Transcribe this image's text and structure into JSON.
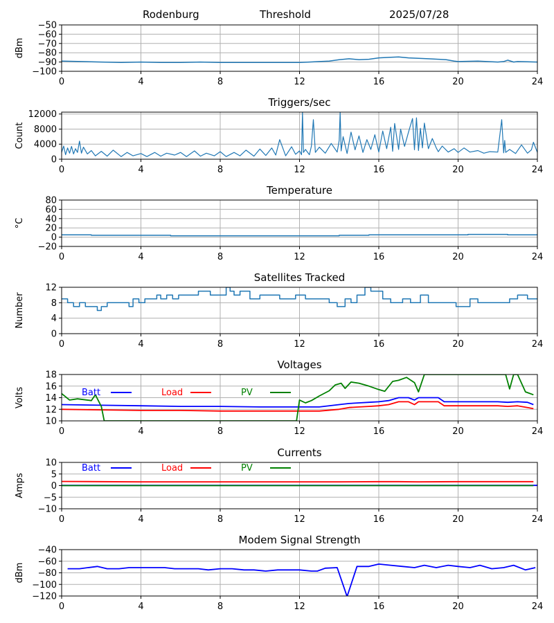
{
  "header": {
    "station": "Rodenburg",
    "mode": "Threshold",
    "date": "2025/07/28"
  },
  "colors": {
    "mpl_blue": "#1f77b4",
    "batt": "#0000ff",
    "load": "#ff0000",
    "pv": "#008000",
    "grid": "#b0b0b0"
  },
  "chart_data": [
    {
      "type": "line",
      "title": "",
      "ylabel": "dBm",
      "xlim": [
        0,
        24
      ],
      "xticks": [
        0,
        4,
        8,
        12,
        16,
        20,
        24
      ],
      "ylim": [
        -100,
        -50
      ],
      "yticks": [
        -100,
        -90,
        -80,
        -70,
        -60,
        -50
      ],
      "grid": true,
      "series": [
        {
          "color": "#1f77b4",
          "width": 1.5,
          "x": [
            0,
            1,
            2,
            3,
            4,
            5,
            6,
            7,
            8,
            9,
            10,
            11,
            12,
            12.5,
            13,
            13.5,
            14,
            14.5,
            15,
            15.5,
            16,
            16.5,
            17,
            17.5,
            18,
            18.5,
            19,
            19.4,
            19.8,
            20,
            21,
            22,
            22.3,
            22.5,
            22.8,
            23,
            24
          ],
          "y": [
            -89,
            -89.5,
            -90,
            -90.5,
            -90,
            -90.5,
            -90.5,
            -90,
            -90.5,
            -90.5,
            -90.5,
            -90.5,
            -90.5,
            -90,
            -89.5,
            -89,
            -87.5,
            -86.5,
            -87.5,
            -87,
            -85.5,
            -85,
            -84.5,
            -85.5,
            -86,
            -86.5,
            -87,
            -87.5,
            -89,
            -89.5,
            -89,
            -90,
            -89.5,
            -88,
            -90,
            -89.5,
            -90
          ]
        }
      ]
    },
    {
      "type": "line",
      "title": "Triggers/sec",
      "ylabel": "Count",
      "xlim": [
        0,
        24
      ],
      "xticks": [
        0,
        4,
        8,
        12,
        16,
        20,
        24
      ],
      "ylim": [
        0,
        12500
      ],
      "yticks": [
        0,
        4000,
        8000,
        12000
      ],
      "grid": true,
      "series": [
        {
          "color": "#1f77b4",
          "width": 1.2,
          "x": [
            0,
            0.1,
            0.2,
            0.3,
            0.4,
            0.5,
            0.6,
            0.7,
            0.8,
            0.9,
            1.0,
            1.1,
            1.3,
            1.5,
            1.7,
            2.0,
            2.3,
            2.6,
            3.0,
            3.3,
            3.6,
            4.0,
            4.3,
            4.7,
            5.0,
            5.3,
            5.7,
            6.0,
            6.3,
            6.7,
            7.0,
            7.3,
            7.7,
            8.0,
            8.3,
            8.7,
            9.0,
            9.3,
            9.7,
            10.0,
            10.3,
            10.6,
            10.8,
            11.0,
            11.3,
            11.6,
            11.8,
            12.0,
            12.1,
            12.15,
            12.2,
            12.3,
            12.5,
            12.6,
            12.7,
            12.8,
            13.0,
            13.3,
            13.6,
            13.9,
            14.0,
            14.05,
            14.1,
            14.2,
            14.4,
            14.6,
            14.8,
            15.0,
            15.2,
            15.4,
            15.6,
            15.8,
            16.0,
            16.2,
            16.4,
            16.6,
            16.7,
            16.8,
            17.0,
            17.1,
            17.3,
            17.5,
            17.7,
            17.8,
            17.9,
            18.0,
            18.1,
            18.2,
            18.3,
            18.5,
            18.7,
            18.9,
            19.0,
            19.2,
            19.5,
            19.8,
            20.0,
            20.3,
            20.6,
            21.0,
            21.3,
            21.6,
            22.0,
            22.2,
            22.3,
            22.35,
            22.4,
            22.6,
            22.9,
            23.2,
            23.5,
            23.7,
            23.8,
            24.0
          ],
          "y": [
            1800,
            3500,
            1200,
            3000,
            1600,
            3400,
            1400,
            2800,
            1800,
            4800,
            1600,
            3200,
            1400,
            2300,
            900,
            2100,
            800,
            2400,
            700,
            1800,
            900,
            1500,
            700,
            1800,
            800,
            1600,
            1100,
            1800,
            700,
            2200,
            800,
            1600,
            900,
            2000,
            700,
            1800,
            900,
            2400,
            800,
            2700,
            1000,
            3000,
            1100,
            5200,
            900,
            3300,
            1300,
            2200,
            1200,
            12500,
            1800,
            2600,
            1200,
            3500,
            10500,
            1800,
            3200,
            1600,
            4200,
            1900,
            5000,
            12500,
            2200,
            6000,
            1500,
            7200,
            2500,
            6200,
            1800,
            5200,
            2600,
            6500,
            1900,
            7500,
            2800,
            8500,
            2100,
            9500,
            2600,
            8000,
            3400,
            7200,
            10800,
            2500,
            11000,
            2300,
            8200,
            3000,
            9600,
            2800,
            5500,
            3000,
            2000,
            3500,
            1900,
            2800,
            1800,
            3000,
            1900,
            2300,
            1600,
            2000,
            1900,
            10500,
            1700,
            5000,
            1800,
            2600,
            1500,
            3800,
            1600,
            2500,
            4500,
            1800
          ]
        }
      ]
    },
    {
      "type": "line",
      "title": "Temperature",
      "ylabel": "°C",
      "xlim": [
        0,
        24
      ],
      "xticks": [
        0,
        4,
        8,
        12,
        16,
        20,
        24
      ],
      "ylim": [
        -20,
        80
      ],
      "yticks": [
        -20,
        0,
        20,
        40,
        60,
        80
      ],
      "grid": true,
      "series": [
        {
          "color": "#1f77b4",
          "width": 1.5,
          "x": [
            0,
            1.5,
            1.5,
            5.5,
            5.5,
            14,
            14,
            15.5,
            15.5,
            20.5,
            20.5,
            22.5,
            22.5,
            24
          ],
          "y": [
            5,
            5,
            4,
            4,
            3,
            3,
            4,
            4,
            5,
            5,
            6,
            6,
            5,
            5
          ]
        }
      ]
    },
    {
      "type": "line",
      "title": "Satellites Tracked",
      "ylabel": "Number",
      "xlim": [
        0,
        24
      ],
      "xticks": [
        0,
        4,
        8,
        12,
        16,
        20,
        24
      ],
      "ylim": [
        0,
        12
      ],
      "yticks": [
        0,
        4,
        8,
        12
      ],
      "grid": true,
      "series": [
        {
          "color": "#1f77b4",
          "width": 1.5,
          "step": true,
          "x": [
            0,
            0.3,
            0.6,
            0.9,
            1.2,
            1.5,
            1.8,
            2.0,
            2.3,
            3.0,
            3.4,
            3.6,
            3.9,
            4.2,
            4.5,
            4.8,
            5.0,
            5.3,
            5.6,
            5.9,
            6.3,
            6.9,
            7.5,
            8.3,
            8.5,
            8.7,
            9.0,
            9.5,
            10.0,
            11.0,
            11.8,
            12.3,
            12.8,
            13.5,
            13.9,
            14.3,
            14.6,
            14.9,
            15.3,
            15.6,
            16.2,
            16.6,
            17.2,
            17.6,
            18.1,
            18.5,
            19.0,
            19.6,
            19.9,
            20.6,
            21.0,
            21.5,
            22.0,
            22.6,
            23.0,
            23.5,
            24.0
          ],
          "y": [
            9,
            8,
            7,
            8,
            7,
            7,
            6,
            7,
            8,
            8,
            7,
            9,
            8,
            9,
            9,
            10,
            9,
            10,
            9,
            10,
            10,
            11,
            10,
            12,
            11,
            10,
            11,
            9,
            10,
            9,
            10,
            9,
            9,
            8,
            7,
            9,
            8,
            10,
            12,
            11,
            9,
            8,
            9,
            8,
            10,
            8,
            8,
            8,
            7,
            9,
            8,
            8,
            8,
            9,
            10,
            9,
            9
          ]
        }
      ]
    },
    {
      "type": "line",
      "title": "Voltages",
      "ylabel": "Volts",
      "xlim": [
        0,
        24
      ],
      "xticks": [
        0,
        4,
        8,
        12,
        16,
        20,
        24
      ],
      "ylim": [
        10,
        18
      ],
      "yticks": [
        10,
        12,
        14,
        16,
        18
      ],
      "grid": true,
      "legend": "top-left",
      "series": [
        {
          "name": "Batt",
          "color": "#0000ff",
          "width": 1.8,
          "x": [
            0,
            2,
            4,
            6,
            8,
            10,
            12,
            13,
            14,
            14.5,
            15,
            15.5,
            16,
            16.5,
            17,
            17.5,
            17.8,
            18,
            18.5,
            19,
            19.3,
            20,
            21,
            22,
            22.5,
            23,
            23.5,
            23.8
          ],
          "y": [
            12.8,
            12.7,
            12.6,
            12.5,
            12.5,
            12.4,
            12.4,
            12.4,
            12.8,
            13.0,
            13.1,
            13.2,
            13.3,
            13.5,
            14.0,
            14.0,
            13.6,
            14.0,
            14.0,
            14.0,
            13.3,
            13.3,
            13.3,
            13.3,
            13.2,
            13.3,
            13.2,
            12.8
          ]
        },
        {
          "name": "Load",
          "color": "#ff0000",
          "width": 1.8,
          "x": [
            0,
            2,
            4,
            6,
            8,
            10,
            12,
            13,
            14,
            14.5,
            15,
            15.5,
            16,
            16.5,
            17,
            17.5,
            17.8,
            18,
            18.5,
            19,
            19.3,
            20,
            21,
            22,
            22.5,
            23,
            23.5,
            23.8
          ],
          "y": [
            12.0,
            11.9,
            11.8,
            11.8,
            11.7,
            11.7,
            11.7,
            11.7,
            12.0,
            12.3,
            12.4,
            12.5,
            12.6,
            12.8,
            13.3,
            13.3,
            12.8,
            13.3,
            13.3,
            13.3,
            12.6,
            12.6,
            12.6,
            12.6,
            12.5,
            12.6,
            12.3,
            12.1
          ]
        },
        {
          "name": "PV",
          "color": "#008000",
          "width": 1.8,
          "x": [
            0,
            0.4,
            0.8,
            1.5,
            1.7,
            2.0,
            2.15,
            11.85,
            12.0,
            12.3,
            12.6,
            13.0,
            13.5,
            13.8,
            14.1,
            14.3,
            14.6,
            15.0,
            15.5,
            16.0,
            16.3,
            16.7,
            17.0,
            17.4,
            17.8,
            18.0,
            18.3,
            22.4,
            22.6,
            22.8,
            23.0,
            23.4,
            23.8
          ],
          "y": [
            14.7,
            13.6,
            13.8,
            13.5,
            14.5,
            12.5,
            10.0,
            10.0,
            13.6,
            13.1,
            13.5,
            14.3,
            15.2,
            16.2,
            16.5,
            15.6,
            16.7,
            16.5,
            16.0,
            15.4,
            15.1,
            16.8,
            17.0,
            17.5,
            16.6,
            15.0,
            18.0,
            18.0,
            15.5,
            18.0,
            18.0,
            15.0,
            14.5
          ]
        }
      ]
    },
    {
      "type": "line",
      "title": "Currents",
      "ylabel": "Amps",
      "xlim": [
        0,
        24
      ],
      "xticks": [
        0,
        4,
        8,
        12,
        16,
        20,
        24
      ],
      "ylim": [
        -10,
        10
      ],
      "yticks": [
        -10,
        -5,
        0,
        5,
        10
      ],
      "grid": true,
      "legend": "top-left",
      "series": [
        {
          "name": "Batt",
          "color": "#0000ff",
          "width": 1.8,
          "x": [
            0,
            24
          ],
          "y": [
            0.1,
            0.1
          ]
        },
        {
          "name": "Load",
          "color": "#ff0000",
          "width": 1.8,
          "x": [
            0,
            2,
            4,
            6,
            8,
            10,
            12,
            14,
            16,
            17,
            18,
            20,
            22,
            23.8
          ],
          "y": [
            1.8,
            1.7,
            1.6,
            1.6,
            1.6,
            1.6,
            1.6,
            1.6,
            1.7,
            1.7,
            1.6,
            1.7,
            1.7,
            1.7
          ]
        },
        {
          "name": "PV",
          "color": "#008000",
          "width": 1.8,
          "x": [
            0,
            23.8
          ],
          "y": [
            0.0,
            0.0
          ]
        }
      ]
    },
    {
      "type": "line",
      "title": "Modem Signal Strength",
      "ylabel": "dBm",
      "xlim": [
        0,
        24
      ],
      "xticks": [
        0,
        4,
        8,
        12,
        16,
        20,
        24
      ],
      "ylim": [
        -120,
        -40
      ],
      "yticks": [
        -120,
        -100,
        -80,
        -60,
        -40
      ],
      "grid": true,
      "series": [
        {
          "color": "#0000ff",
          "width": 1.8,
          "x": [
            0.3,
            0.9,
            1.8,
            2.3,
            2.9,
            3.4,
            4.0,
            4.6,
            5.2,
            5.7,
            6.3,
            6.9,
            7.4,
            8.0,
            8.6,
            9.2,
            9.7,
            10.3,
            10.9,
            11.5,
            12.0,
            12.6,
            12.9,
            13.3,
            13.9,
            14.4,
            14.9,
            15.5,
            16.0,
            16.6,
            17.2,
            17.8,
            18.3,
            18.9,
            19.5,
            20.0,
            20.6,
            21.1,
            21.7,
            22.3,
            22.8,
            23.4,
            23.9
          ],
          "y": [
            -73,
            -73,
            -69,
            -73,
            -73,
            -71,
            -71,
            -71,
            -71,
            -73,
            -73,
            -73,
            -75,
            -73,
            -73,
            -75,
            -75,
            -77,
            -75,
            -75,
            -75,
            -77,
            -77,
            -72,
            -71,
            -121,
            -69,
            -69,
            -65,
            -67,
            -69,
            -71,
            -67,
            -71,
            -67,
            -69,
            -71,
            -67,
            -73,
            -71,
            -67,
            -75,
            -71
          ]
        }
      ]
    }
  ]
}
